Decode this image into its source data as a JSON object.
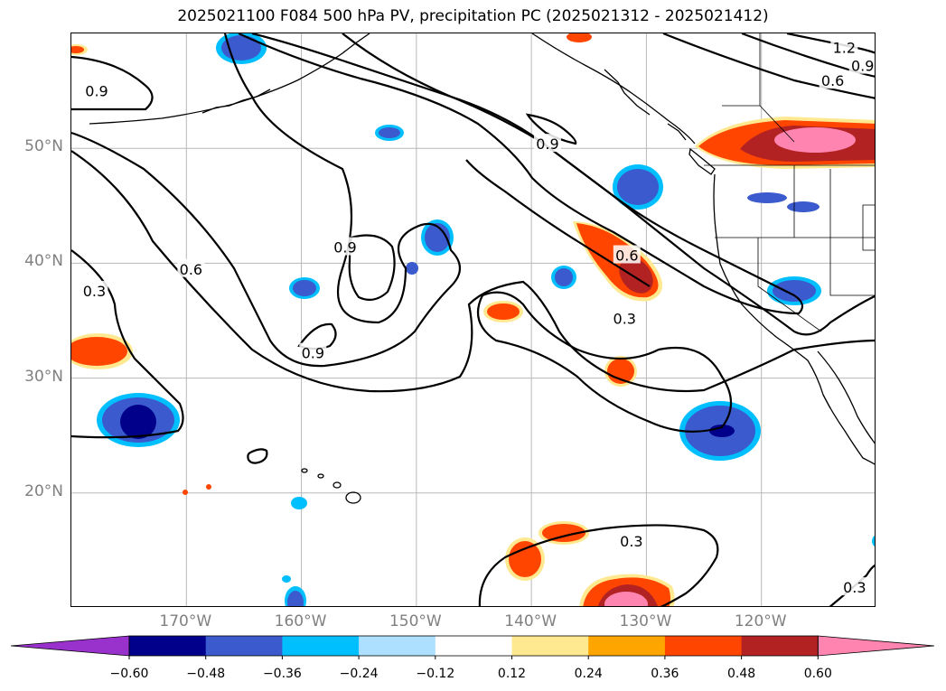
{
  "title": "2025021100 F084 500 hPa PV, precipitation PC (2025021312 - 2025021412)",
  "map": {
    "lon_range": [
      -180,
      -110
    ],
    "lat_range": [
      10,
      60
    ],
    "lat_ticks": [
      {
        "value": 50,
        "label": "50°N"
      },
      {
        "value": 40,
        "label": "40°N"
      },
      {
        "value": 30,
        "label": "30°N"
      },
      {
        "value": 20,
        "label": "20°N"
      }
    ],
    "lon_ticks": [
      {
        "value": -170,
        "label": "170°W"
      },
      {
        "value": -160,
        "label": "160°W"
      },
      {
        "value": -150,
        "label": "150°W"
      },
      {
        "value": -140,
        "label": "140°W"
      },
      {
        "value": -130,
        "label": "130°W"
      },
      {
        "value": -120,
        "label": "120°W"
      }
    ],
    "contour_labels": [
      {
        "text": "1.2",
        "lon": -112.8,
        "lat": 58.8
      },
      {
        "text": "0.9",
        "lon": -111.2,
        "lat": 57.2
      },
      {
        "text": "0.6",
        "lon": -113.8,
        "lat": 55.9
      },
      {
        "text": "0.9",
        "lon": -177.8,
        "lat": 55.0
      },
      {
        "text": "0.9",
        "lon": -138.6,
        "lat": 50.4
      },
      {
        "text": "0.9",
        "lon": -156.2,
        "lat": 41.4
      },
      {
        "text": "0.6",
        "lon": -169.6,
        "lat": 39.5
      },
      {
        "text": "0.6",
        "lon": -131.7,
        "lat": 40.7
      },
      {
        "text": "0.3",
        "lon": -178.0,
        "lat": 37.6
      },
      {
        "text": "0.3",
        "lon": -131.9,
        "lat": 35.2
      },
      {
        "text": "0.9",
        "lon": -159.0,
        "lat": 32.2
      },
      {
        "text": "0.3",
        "lon": -131.3,
        "lat": 15.8
      },
      {
        "text": "0.3",
        "lon": -111.9,
        "lat": 11.8
      }
    ]
  },
  "colorbar": {
    "colors": [
      "#9932CC",
      "#00008B",
      "#3A5ACD",
      "#00BFFF",
      "#ADDFFF",
      "#FFFFFF",
      "#FFE990",
      "#FFA500",
      "#FF4500",
      "#B22222",
      "#FF85B0"
    ],
    "tick_labels": [
      "−0.60",
      "−0.48",
      "−0.36",
      "−0.24",
      "−0.12",
      "0.12",
      "0.24",
      "0.36",
      "0.48",
      "0.60"
    ]
  }
}
